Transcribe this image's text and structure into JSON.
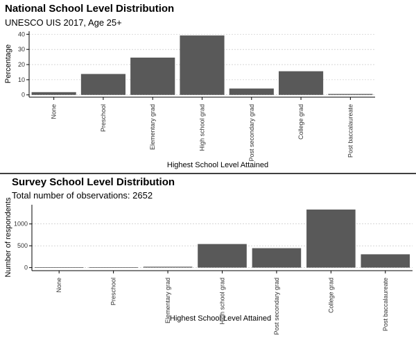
{
  "chart_data": [
    {
      "type": "bar",
      "title": "National School Level Distribution",
      "subtitle": "UNESCO UIS 2017, Age 25+",
      "xlabel": "Highest School Level Attained",
      "ylabel": "Percentage",
      "categories": [
        "None",
        "Preschool",
        "Elementary grad",
        "High school grad",
        "Post secondary grad",
        "College grad",
        "Post baccalaureate"
      ],
      "values": [
        1.8,
        13.8,
        24.6,
        39.2,
        4.2,
        15.6,
        0.6
      ],
      "ylim": [
        -1.5,
        42
      ],
      "yticks": [
        0,
        10,
        20,
        30,
        40
      ],
      "grid": "horizontal"
    },
    {
      "type": "bar",
      "title": "Survey School Level Distribution",
      "subtitle": "Total number of observations: 2652",
      "xlabel": "Highest School Level Attained",
      "ylabel": "Number of respondents",
      "categories": [
        "None",
        "Preschool",
        "Elementary grad",
        "High school grad",
        "Post secondary grad",
        "College grad",
        "Post baccalaureate"
      ],
      "values": [
        0,
        0,
        20,
        540,
        445,
        1330,
        305
      ],
      "ylim": [
        -70,
        1440
      ],
      "yticks": [
        0,
        500,
        1000
      ],
      "grid": "horizontal"
    }
  ]
}
